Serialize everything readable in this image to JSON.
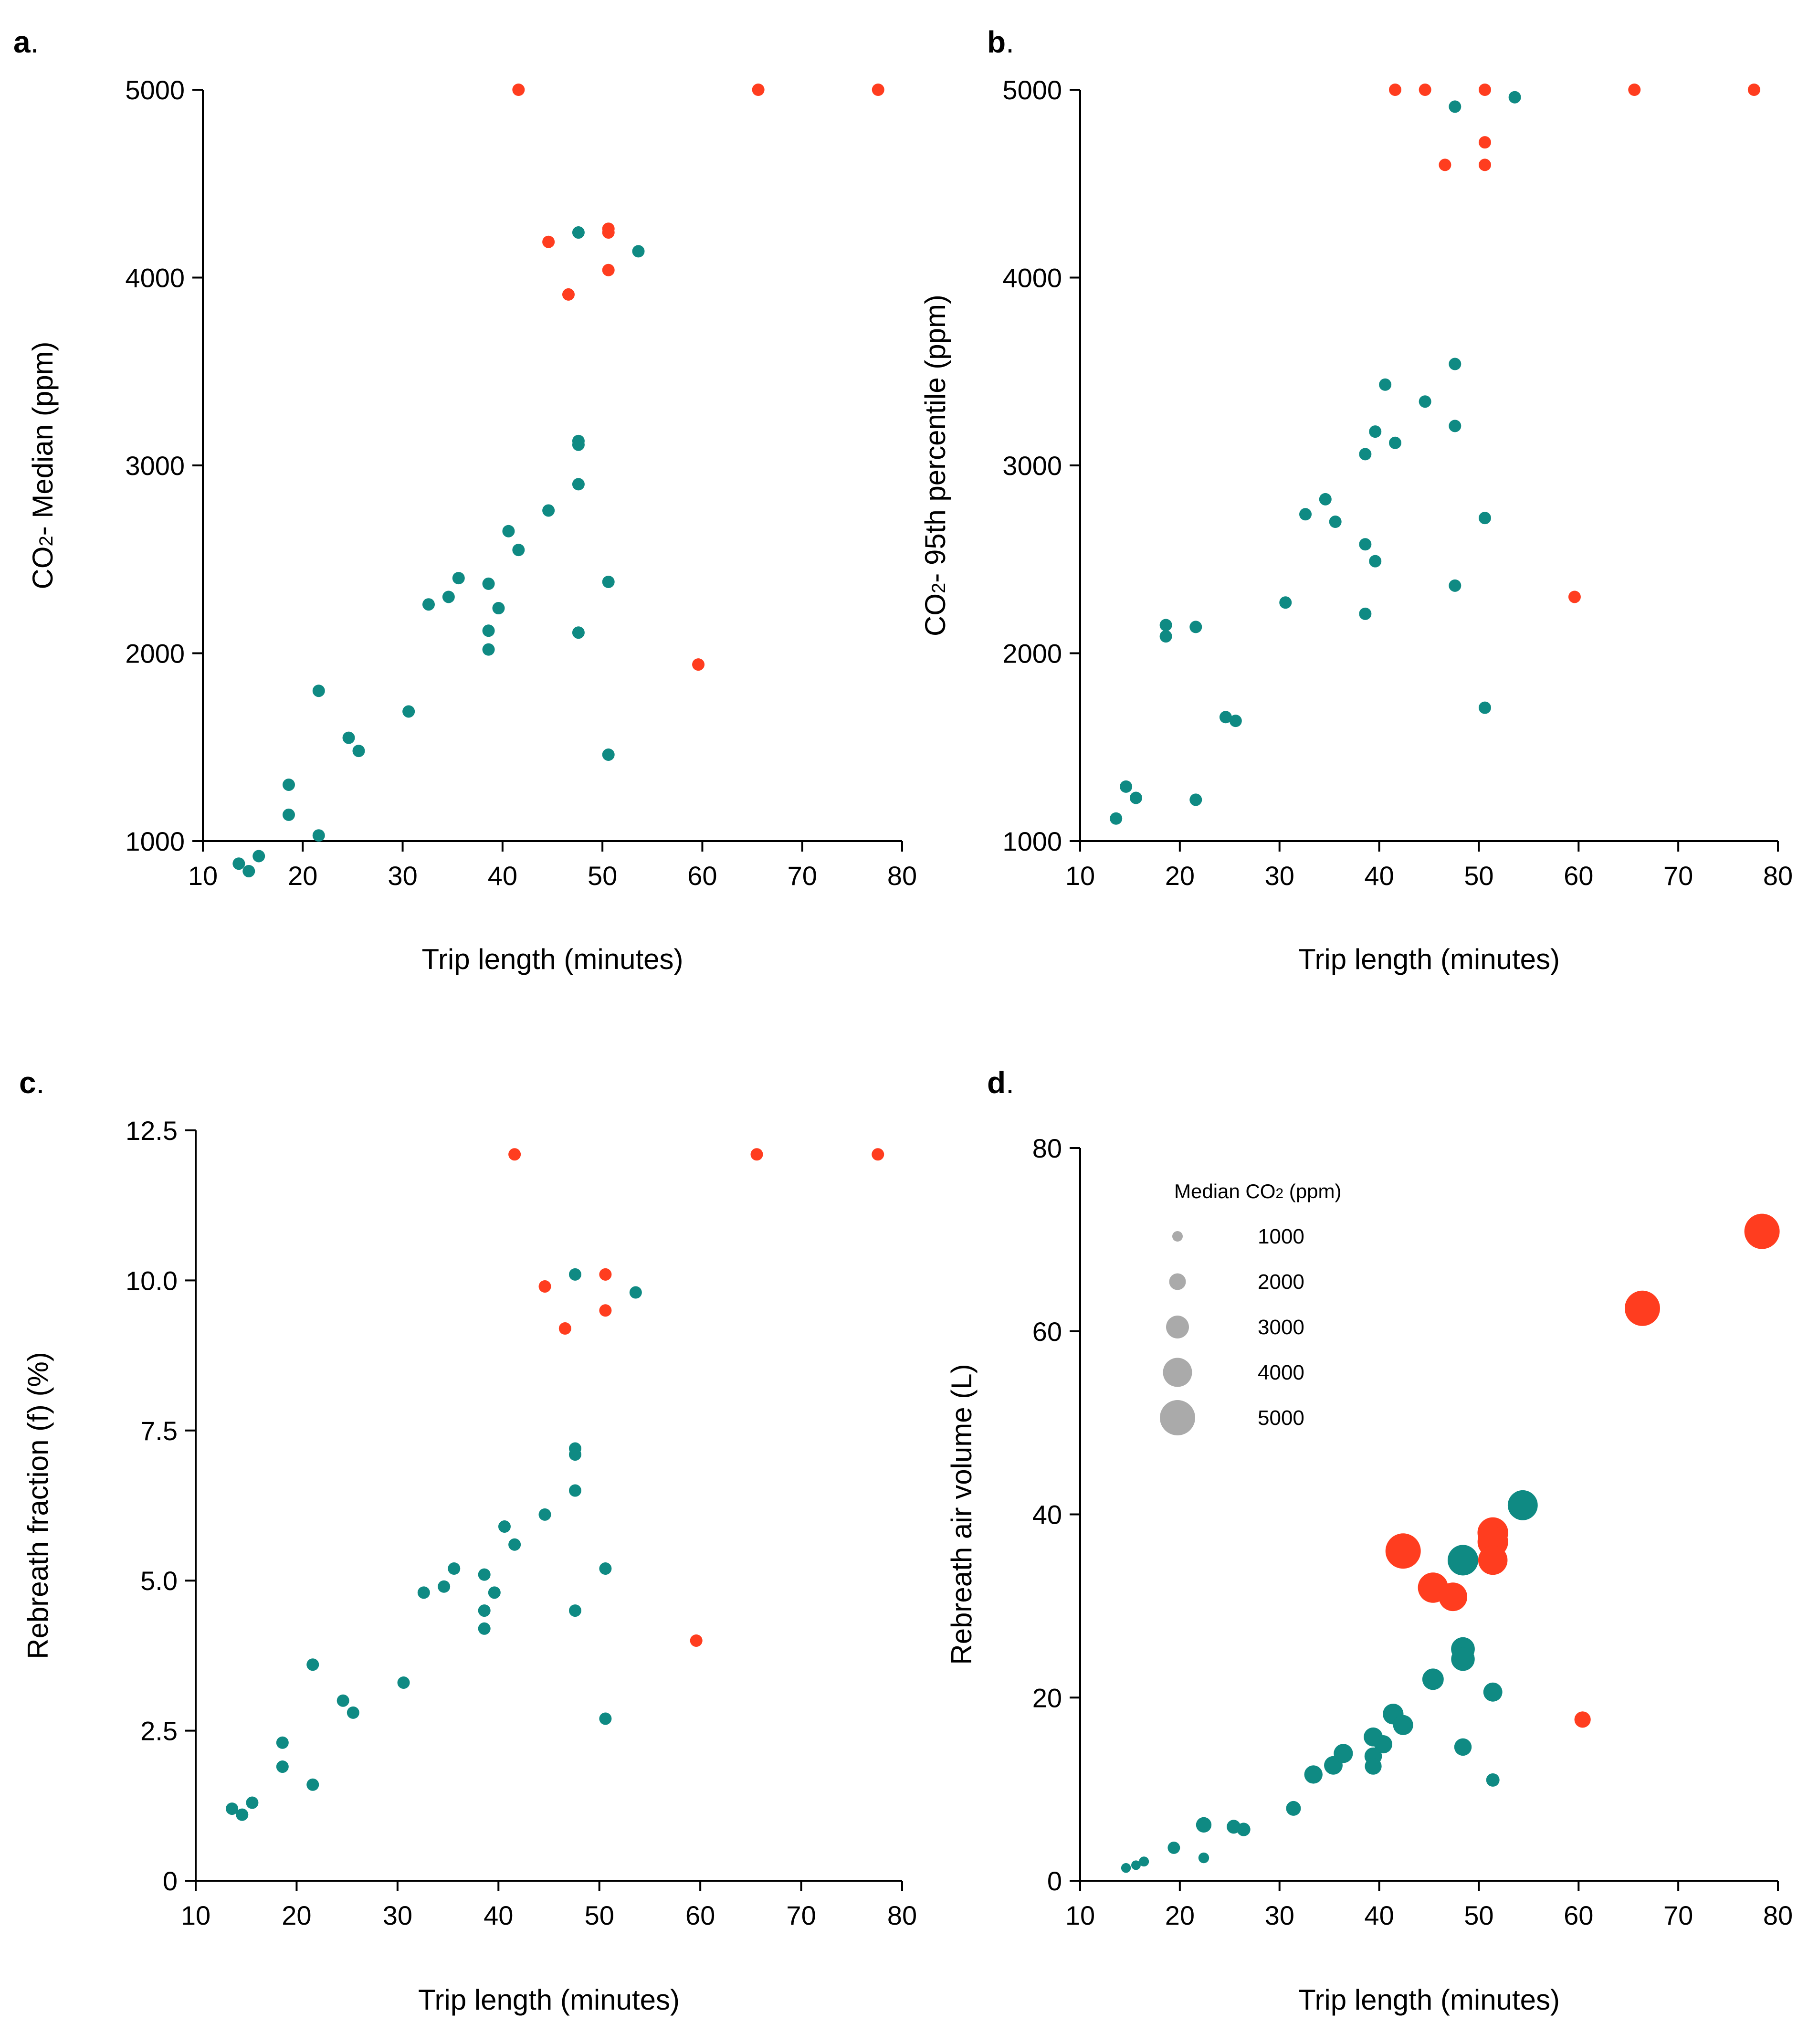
{
  "colors": {
    "teal": "#0f8a83",
    "red": "#ff3d1f",
    "legend": "#aaaaaa"
  },
  "chart_data": [
    {
      "id": "a",
      "type": "scatter",
      "letter": "a",
      "letter_suffix": ".",
      "xlabel": "Trip length (minutes)",
      "ylabel_prefix": "CO",
      "ylabel_sub": "2",
      "ylabel_suffix": "- Median (ppm)",
      "xlim": [
        10,
        80
      ],
      "ylim": [
        1000,
        5000
      ],
      "xticks": [
        10,
        20,
        30,
        40,
        50,
        60,
        70,
        80
      ],
      "yticks": [
        1000,
        2000,
        3000,
        4000,
        5000
      ],
      "ytick_labels": [
        "1000",
        "2000",
        "3000",
        "4000",
        "5000"
      ],
      "series": [
        {
          "name": "teal",
          "points": [
            [
              13.6,
              880
            ],
            [
              14.6,
              840
            ],
            [
              15.6,
              920
            ],
            [
              18.6,
              1140
            ],
            [
              18.6,
              1300
            ],
            [
              21.6,
              1030
            ],
            [
              21.6,
              1800
            ],
            [
              24.6,
              1550
            ],
            [
              25.6,
              1480
            ],
            [
              30.6,
              1690
            ],
            [
              32.6,
              2260
            ],
            [
              34.6,
              2300
            ],
            [
              35.6,
              2400
            ],
            [
              38.6,
              2370
            ],
            [
              38.6,
              2120
            ],
            [
              38.6,
              2020
            ],
            [
              39.6,
              2240
            ],
            [
              40.6,
              2650
            ],
            [
              41.6,
              2550
            ],
            [
              44.6,
              2760
            ],
            [
              47.6,
              4240
            ],
            [
              47.6,
              3130
            ],
            [
              47.6,
              3110
            ],
            [
              47.6,
              2900
            ],
            [
              47.6,
              2110
            ],
            [
              50.6,
              2380
            ],
            [
              50.6,
              1460
            ],
            [
              53.6,
              4140
            ]
          ]
        },
        {
          "name": "red",
          "points": [
            [
              41.6,
              5000
            ],
            [
              44.6,
              4190
            ],
            [
              46.6,
              3910
            ],
            [
              50.6,
              4260
            ],
            [
              50.6,
              4240
            ],
            [
              50.6,
              4040
            ],
            [
              59.6,
              1940
            ],
            [
              65.6,
              5000
            ],
            [
              77.6,
              5000
            ]
          ]
        }
      ]
    },
    {
      "id": "b",
      "type": "scatter",
      "letter": "b",
      "letter_suffix": ".",
      "xlabel": "Trip length (minutes)",
      "ylabel_prefix": "CO",
      "ylabel_sub": "2",
      "ylabel_suffix": "- 95th percentile (ppm)",
      "xlim": [
        10,
        80
      ],
      "ylim": [
        1000,
        5000
      ],
      "xticks": [
        10,
        20,
        30,
        40,
        50,
        60,
        70,
        80
      ],
      "yticks": [
        1000,
        2000,
        3000,
        4000,
        5000
      ],
      "ytick_labels": [
        "1000",
        "2000",
        "3000",
        "4000",
        "5000"
      ],
      "series": [
        {
          "name": "teal",
          "points": [
            [
              13.6,
              1120
            ],
            [
              14.6,
              1290
            ],
            [
              15.6,
              1230
            ],
            [
              18.6,
              2150
            ],
            [
              18.6,
              2090
            ],
            [
              21.6,
              2140
            ],
            [
              21.6,
              1220
            ],
            [
              24.6,
              1660
            ],
            [
              25.6,
              1640
            ],
            [
              30.6,
              2270
            ],
            [
              32.6,
              2740
            ],
            [
              34.6,
              2820
            ],
            [
              35.6,
              2700
            ],
            [
              38.6,
              3060
            ],
            [
              38.6,
              2580
            ],
            [
              38.6,
              2210
            ],
            [
              39.6,
              3180
            ],
            [
              39.6,
              2490
            ],
            [
              40.6,
              3430
            ],
            [
              41.6,
              3120
            ],
            [
              44.6,
              3340
            ],
            [
              47.6,
              4910
            ],
            [
              47.6,
              3540
            ],
            [
              47.6,
              3210
            ],
            [
              47.6,
              2360
            ],
            [
              50.6,
              2720
            ],
            [
              50.6,
              1710
            ],
            [
              53.6,
              4960
            ]
          ]
        },
        {
          "name": "red",
          "points": [
            [
              41.6,
              5000
            ],
            [
              44.6,
              5000
            ],
            [
              46.6,
              4600
            ],
            [
              50.6,
              5000
            ],
            [
              50.6,
              4720
            ],
            [
              50.6,
              4600
            ],
            [
              59.6,
              2300
            ],
            [
              65.6,
              5000
            ],
            [
              77.6,
              5000
            ]
          ]
        }
      ]
    },
    {
      "id": "c",
      "type": "scatter",
      "letter": "c",
      "letter_suffix": ".",
      "xlabel": "Trip length (minutes)",
      "ylabel_prefix": "Rebreath fraction (f) (%)",
      "ylabel_sub": "",
      "ylabel_suffix": "",
      "xlim": [
        10,
        80
      ],
      "ylim": [
        0,
        12.5
      ],
      "xticks": [
        10,
        20,
        30,
        40,
        50,
        60,
        70,
        80
      ],
      "yticks": [
        0,
        2.5,
        5,
        7.5,
        10,
        12.5
      ],
      "ytick_labels": [
        "0",
        "2.5",
        "5.0",
        "7.5",
        "10.0",
        "12.5"
      ],
      "series": [
        {
          "name": "teal",
          "points": [
            [
              13.6,
              1.2
            ],
            [
              14.6,
              1.1
            ],
            [
              15.6,
              1.3
            ],
            [
              18.6,
              2.3
            ],
            [
              18.6,
              1.9
            ],
            [
              21.6,
              3.6
            ],
            [
              21.6,
              1.6
            ],
            [
              24.6,
              3.0
            ],
            [
              25.6,
              2.8
            ],
            [
              30.6,
              3.3
            ],
            [
              32.6,
              4.8
            ],
            [
              34.6,
              4.9
            ],
            [
              35.6,
              5.2
            ],
            [
              38.6,
              5.1
            ],
            [
              38.6,
              4.5
            ],
            [
              38.6,
              4.2
            ],
            [
              39.6,
              4.8
            ],
            [
              40.6,
              5.9
            ],
            [
              41.6,
              5.6
            ],
            [
              44.6,
              6.1
            ],
            [
              47.6,
              10.1
            ],
            [
              47.6,
              7.2
            ],
            [
              47.6,
              7.1
            ],
            [
              47.6,
              6.5
            ],
            [
              47.6,
              4.5
            ],
            [
              50.6,
              5.2
            ],
            [
              50.6,
              2.7
            ],
            [
              53.6,
              9.8
            ]
          ]
        },
        {
          "name": "red",
          "points": [
            [
              41.6,
              12.1
            ],
            [
              44.6,
              9.9
            ],
            [
              46.6,
              9.2
            ],
            [
              50.6,
              10.1
            ],
            [
              50.6,
              9.5
            ],
            [
              59.6,
              4.0
            ],
            [
              65.6,
              12.1
            ],
            [
              77.6,
              12.1
            ]
          ]
        }
      ]
    },
    {
      "id": "d",
      "type": "scatter",
      "letter": "d",
      "letter_suffix": ".",
      "xlabel": "Trip length (minutes)",
      "ylabel_prefix": "Rebreath air volume (L)",
      "ylabel_sub": "",
      "ylabel_suffix": "",
      "xlim": [
        10,
        80
      ],
      "ylim": [
        0,
        80
      ],
      "xticks": [
        10,
        20,
        30,
        40,
        50,
        60,
        70,
        80
      ],
      "yticks": [
        0,
        20,
        40,
        60,
        80
      ],
      "ytick_labels": [
        "0",
        "20",
        "40",
        "60",
        "80"
      ],
      "size_encoding": "Median CO2 (ppm)",
      "series": [
        {
          "name": "teal",
          "points": [
            [
              14.6,
              1.4,
              880
            ],
            [
              15.6,
              1.7,
              840
            ],
            [
              16.4,
              2.1,
              920
            ],
            [
              19.4,
              3.6,
              1300
            ],
            [
              22.4,
              2.5,
              1030
            ],
            [
              22.4,
              6.1,
              1800
            ],
            [
              25.4,
              5.9,
              1550
            ],
            [
              26.4,
              5.6,
              1480
            ],
            [
              31.4,
              7.9,
              1690
            ],
            [
              33.4,
              11.6,
              2260
            ],
            [
              35.4,
              12.6,
              2300
            ],
            [
              36.4,
              13.9,
              2400
            ],
            [
              39.4,
              15.7,
              2370
            ],
            [
              39.4,
              13.6,
              2120
            ],
            [
              39.4,
              12.5,
              2020
            ],
            [
              40.4,
              14.9,
              2240
            ],
            [
              41.4,
              18.2,
              2650
            ],
            [
              42.4,
              17.0,
              2550
            ],
            [
              45.4,
              22.0,
              2760
            ],
            [
              48.4,
              35.0,
              4240
            ],
            [
              48.4,
              25.3,
              3130
            ],
            [
              48.4,
              24.2,
              3110
            ],
            [
              48.4,
              14.6,
              2110
            ],
            [
              51.4,
              20.6,
              2380
            ],
            [
              51.4,
              11.0,
              1460
            ],
            [
              54.4,
              41.0,
              4140
            ]
          ]
        },
        {
          "name": "red",
          "points": [
            [
              42.4,
              36.0,
              5000
            ],
            [
              45.4,
              32.0,
              4190
            ],
            [
              47.4,
              31.0,
              3910
            ],
            [
              51.4,
              38.0,
              4260
            ],
            [
              51.4,
              37.0,
              4240
            ],
            [
              51.4,
              35.0,
              4040
            ],
            [
              60.4,
              17.6,
              1940
            ],
            [
              66.4,
              62.5,
              5000
            ],
            [
              78.4,
              70.9,
              5000
            ]
          ]
        }
      ],
      "legend": {
        "title_prefix": "Median CO",
        "title_sub": "2",
        "title_suffix": " (ppm)",
        "entries": [
          {
            "label": "1000",
            "value": 1000
          },
          {
            "label": "2000",
            "value": 2000
          },
          {
            "label": "3000",
            "value": 3000
          },
          {
            "label": "4000",
            "value": 4000
          },
          {
            "label": "5000",
            "value": 5000
          }
        ]
      }
    }
  ]
}
